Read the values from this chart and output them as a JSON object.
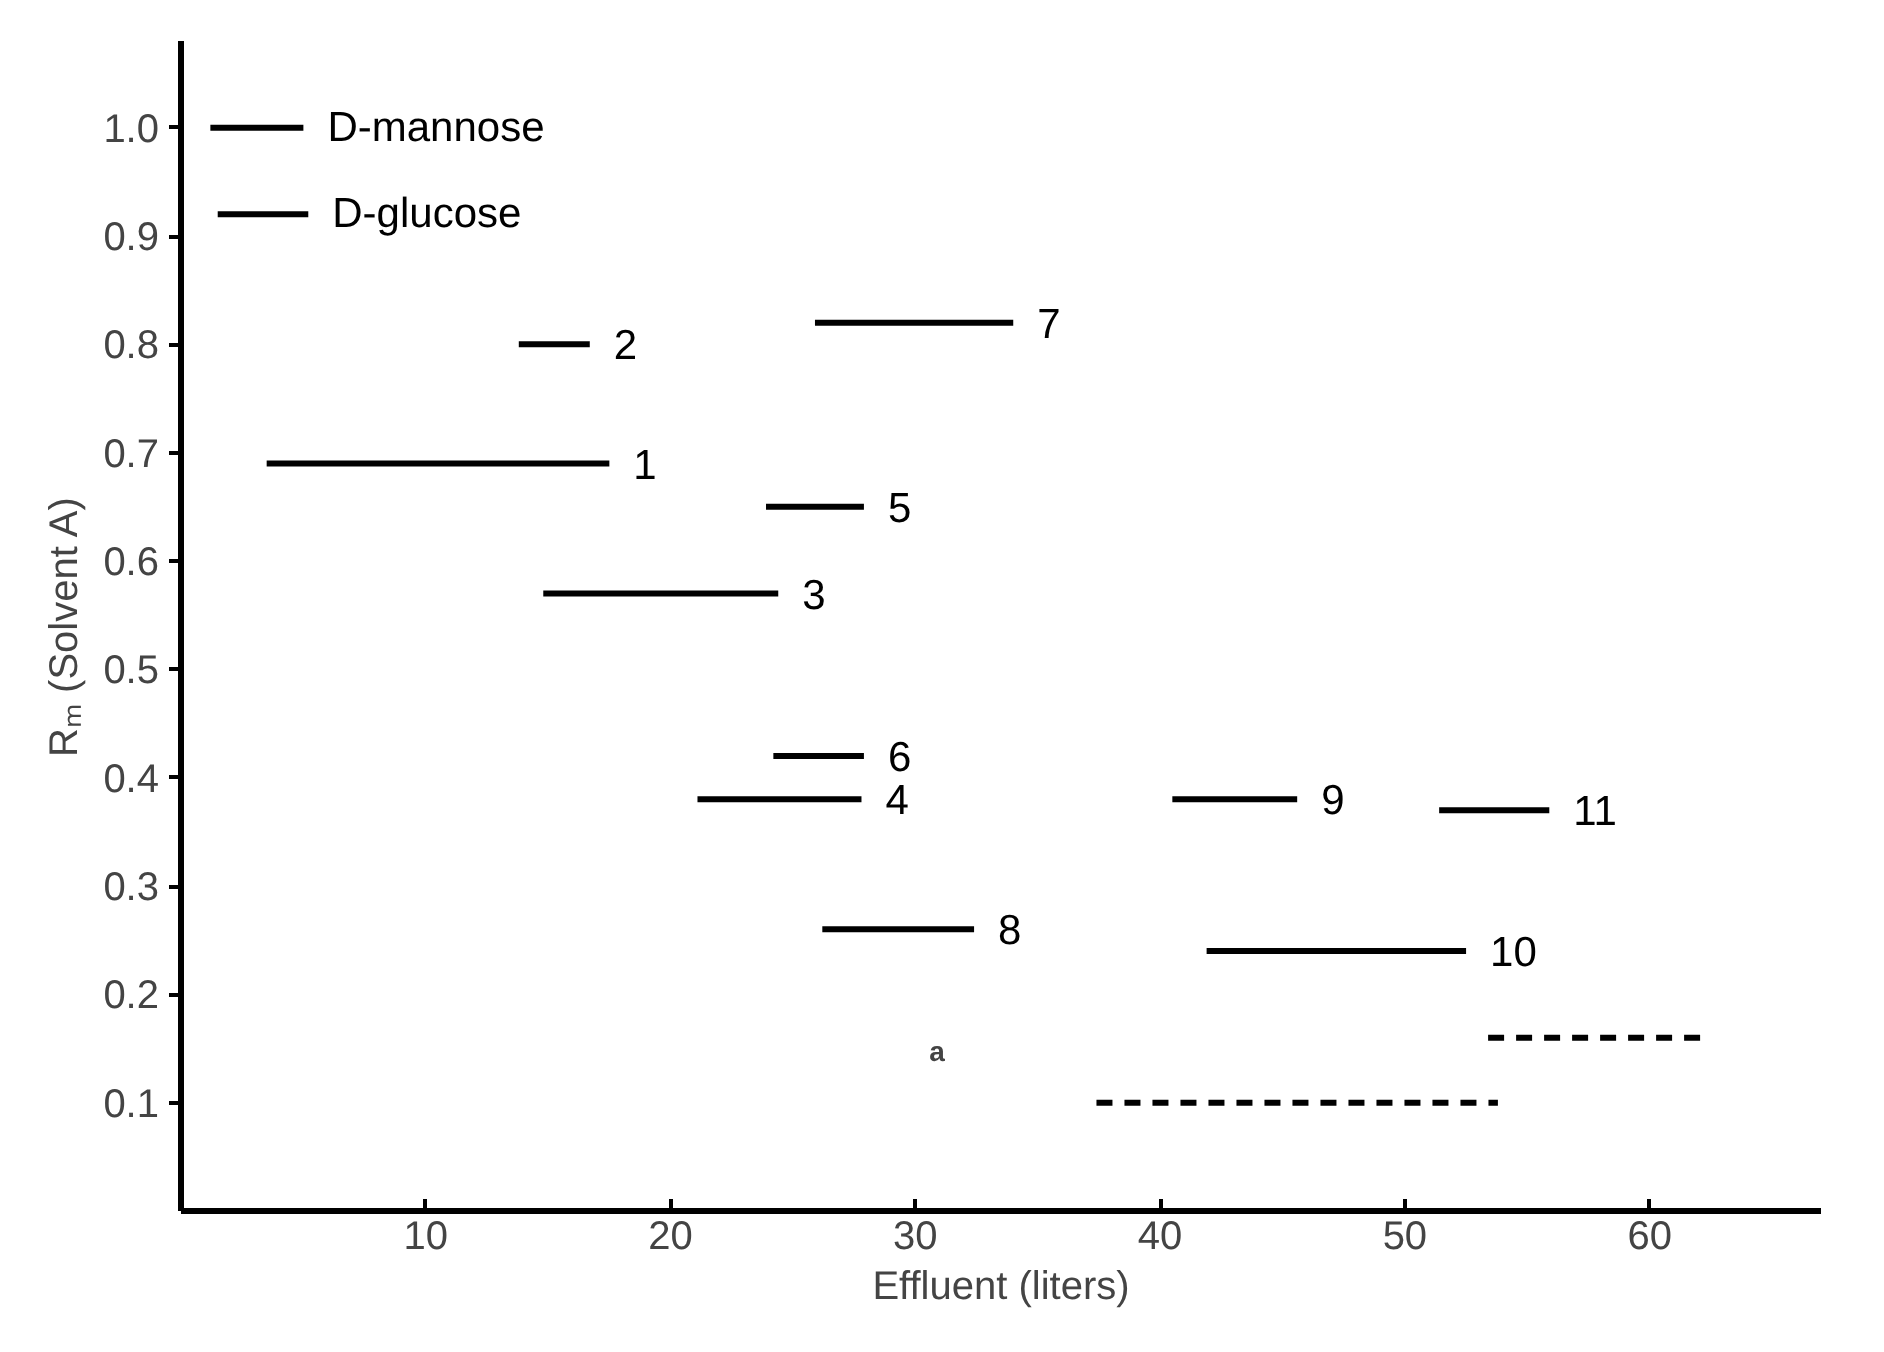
{
  "chart_data": {
    "type": "line",
    "xlabel": "Effluent (liters)",
    "ylabel": "Rₘ (Solvent A)",
    "xlim": [
      0,
      67
    ],
    "ylim": [
      0,
      1.08
    ],
    "xticks": [
      10,
      20,
      30,
      40,
      50,
      60
    ],
    "yticks": [
      0.1,
      0.2,
      0.3,
      0.4,
      0.5,
      0.6,
      0.7,
      0.8,
      0.9,
      {
        "value": 1.0,
        "label": "1.0"
      }
    ],
    "series": [
      {
        "name": "D-mannose",
        "color": "#000000",
        "x": [
          1.2,
          5.0
        ],
        "values": [
          1.0,
          1.0
        ]
      },
      {
        "name": "D-glucose",
        "color": "#000000",
        "x": [
          1.5,
          5.2
        ],
        "values": [
          0.92,
          0.92
        ]
      },
      {
        "name": "2",
        "color": "#000000",
        "x": [
          13.8,
          16.7
        ],
        "values": [
          0.8,
          0.8
        ]
      },
      {
        "name": "1",
        "color": "#000000",
        "x": [
          3.5,
          17.5
        ],
        "values": [
          0.69,
          0.69
        ]
      },
      {
        "name": "7",
        "color": "#000000",
        "x": [
          25.9,
          34.0
        ],
        "values": [
          0.82,
          0.82
        ]
      },
      {
        "name": "5",
        "color": "#000000",
        "x": [
          23.9,
          27.9
        ],
        "values": [
          0.65,
          0.65
        ]
      },
      {
        "name": "3",
        "color": "#000000",
        "x": [
          14.8,
          24.4
        ],
        "values": [
          0.57,
          0.57
        ]
      },
      {
        "name": "6",
        "color": "#000000",
        "x": [
          24.2,
          27.9
        ],
        "values": [
          0.42,
          0.42
        ]
      },
      {
        "name": "4",
        "color": "#000000",
        "x": [
          21.1,
          27.8
        ],
        "values": [
          0.38,
          0.38
        ]
      },
      {
        "name": "9",
        "color": "#000000",
        "x": [
          40.5,
          45.6
        ],
        "values": [
          0.38,
          0.38
        ]
      },
      {
        "name": "11",
        "color": "#000000",
        "x": [
          51.4,
          55.9
        ],
        "values": [
          0.37,
          0.37
        ]
      },
      {
        "name": "8",
        "color": "#000000",
        "x": [
          26.2,
          32.4
        ],
        "values": [
          0.26,
          0.26
        ]
      },
      {
        "name": "10",
        "color": "#000000",
        "x": [
          41.9,
          52.5
        ],
        "values": [
          0.24,
          0.24
        ]
      },
      {
        "color": "#000000",
        "x": [
          53.4,
          62.4
        ],
        "values": [
          0.16,
          0.16
        ],
        "line_style": "dashed"
      },
      {
        "color": "#000000",
        "x": [
          37.4,
          53.8
        ],
        "values": [
          0.1,
          0.1
        ],
        "line_style": "dashed"
      }
    ],
    "annotations": [
      "a"
    ]
  }
}
